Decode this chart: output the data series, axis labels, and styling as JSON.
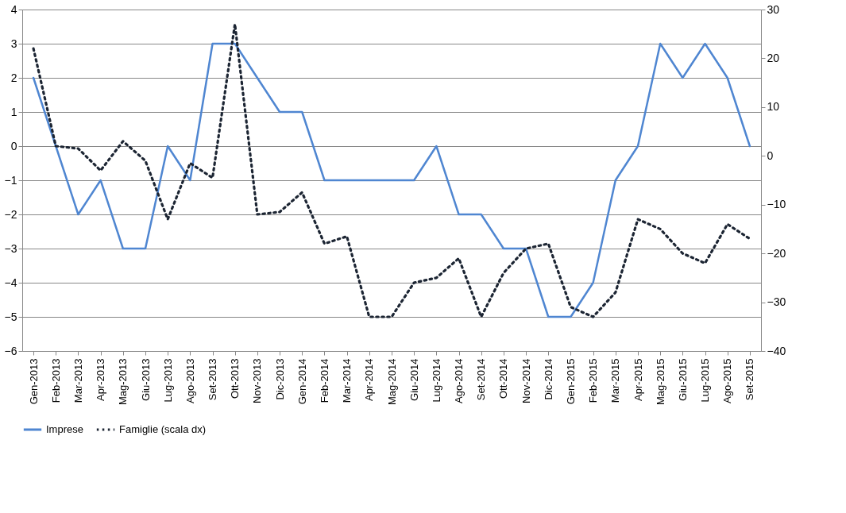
{
  "chart_data": {
    "type": "line",
    "categories": [
      "Gen-2013",
      "Feb-2013",
      "Mar-2013",
      "Apr-2013",
      "Mag-2013",
      "Giu-2013",
      "Lug-2013",
      "Ago-2013",
      "Set-2013",
      "Ott-2013",
      "Nov-2013",
      "Dic-2013",
      "Gen-2014",
      "Feb-2014",
      "Mar-2014",
      "Apr-2014",
      "Mag-2014",
      "Giu-2014",
      "Lug-2014",
      "Ago-2014",
      "Set-2014",
      "Ott-2014",
      "Nov-2014",
      "Dic-2014",
      "Gen-2015",
      "Feb-2015",
      "Mar-2015",
      "Apr-2015",
      "Mag-2015",
      "Giu-2015",
      "Lug-2015",
      "Ago-2015",
      "Set-2015"
    ],
    "series": [
      {
        "name": "Imprese",
        "color": "#4f86d1",
        "line_style": "solid",
        "values": [
          2,
          0,
          -2,
          -1,
          -3,
          -3,
          0,
          -1,
          3,
          3,
          2,
          1,
          1,
          -1,
          -1,
          -1,
          -1,
          -1,
          0,
          -2,
          -2,
          -3,
          -3,
          -5,
          -5,
          -4,
          -1,
          0,
          3,
          2,
          3,
          2,
          0
        ]
      },
      {
        "name": "Famiglie (scala dx)",
        "color": "#1c2533",
        "line_style": "dotted",
        "axis": "y2",
        "values": [
          22,
          2,
          1.5,
          -3,
          3,
          -1,
          -13,
          -1.5,
          -4.5,
          27,
          -12,
          -11.5,
          -7.5,
          -18,
          -16.5,
          -33,
          -33,
          -26,
          -25,
          -21,
          -33,
          -24,
          -19,
          -18,
          -31,
          -33,
          -28,
          -13,
          -15,
          -20,
          -22,
          -14,
          -17
        ]
      }
    ],
    "ylim": [
      -6,
      4
    ],
    "yticks": [
      -6,
      -5,
      -4,
      -3,
      -2,
      -1,
      0,
      1,
      2,
      3,
      4
    ],
    "y2lim": [
      -40,
      30
    ],
    "y2ticks": [
      -40,
      -30,
      -20,
      -10,
      0,
      10,
      20,
      30
    ],
    "grid": "y",
    "legend": "bottom",
    "marker": "none"
  }
}
